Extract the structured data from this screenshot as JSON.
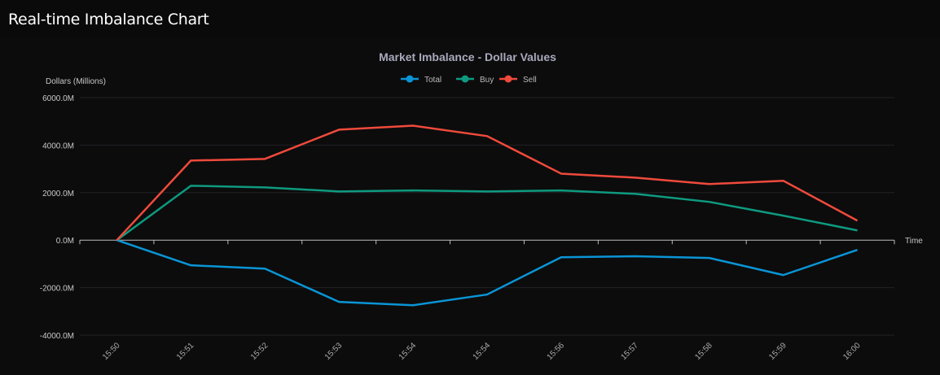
{
  "header": {
    "title": "Real-time Imbalance Chart"
  },
  "chart_data": {
    "type": "line",
    "title": "Market Imbalance - Dollar Values",
    "xlabel": "Time",
    "ylabel": "Dollars (Millions)",
    "ylim": [
      -4000,
      6000
    ],
    "yticks": [
      6000,
      4000,
      2000,
      0,
      -2000,
      -4000
    ],
    "ytick_labels": [
      "6000.0M",
      "4000.0M",
      "2000.0M",
      "0.0M",
      "-2000.0M",
      "-4000.0M"
    ],
    "grid": true,
    "legend_position": "top-center",
    "categories": [
      "15:50",
      "15:51",
      "15:52",
      "15:53",
      "15:54",
      "15:54",
      "15:56",
      "15:57",
      "15:58",
      "15:59",
      "16:00"
    ],
    "series": [
      {
        "name": "Total",
        "color": "#0a95d6",
        "values": [
          0,
          -1060,
          -1200,
          -2600,
          -2740,
          -2290,
          -720,
          -680,
          -750,
          -1470,
          -410
        ]
      },
      {
        "name": "Buy",
        "color": "#0e9a80",
        "values": [
          0,
          2290,
          2220,
          2050,
          2090,
          2050,
          2090,
          1950,
          1610,
          1030,
          410
        ]
      },
      {
        "name": "Sell",
        "color": "#ef4a3c",
        "values": [
          0,
          3350,
          3420,
          4650,
          4820,
          4380,
          2800,
          2630,
          2360,
          2500,
          820
        ]
      }
    ]
  }
}
